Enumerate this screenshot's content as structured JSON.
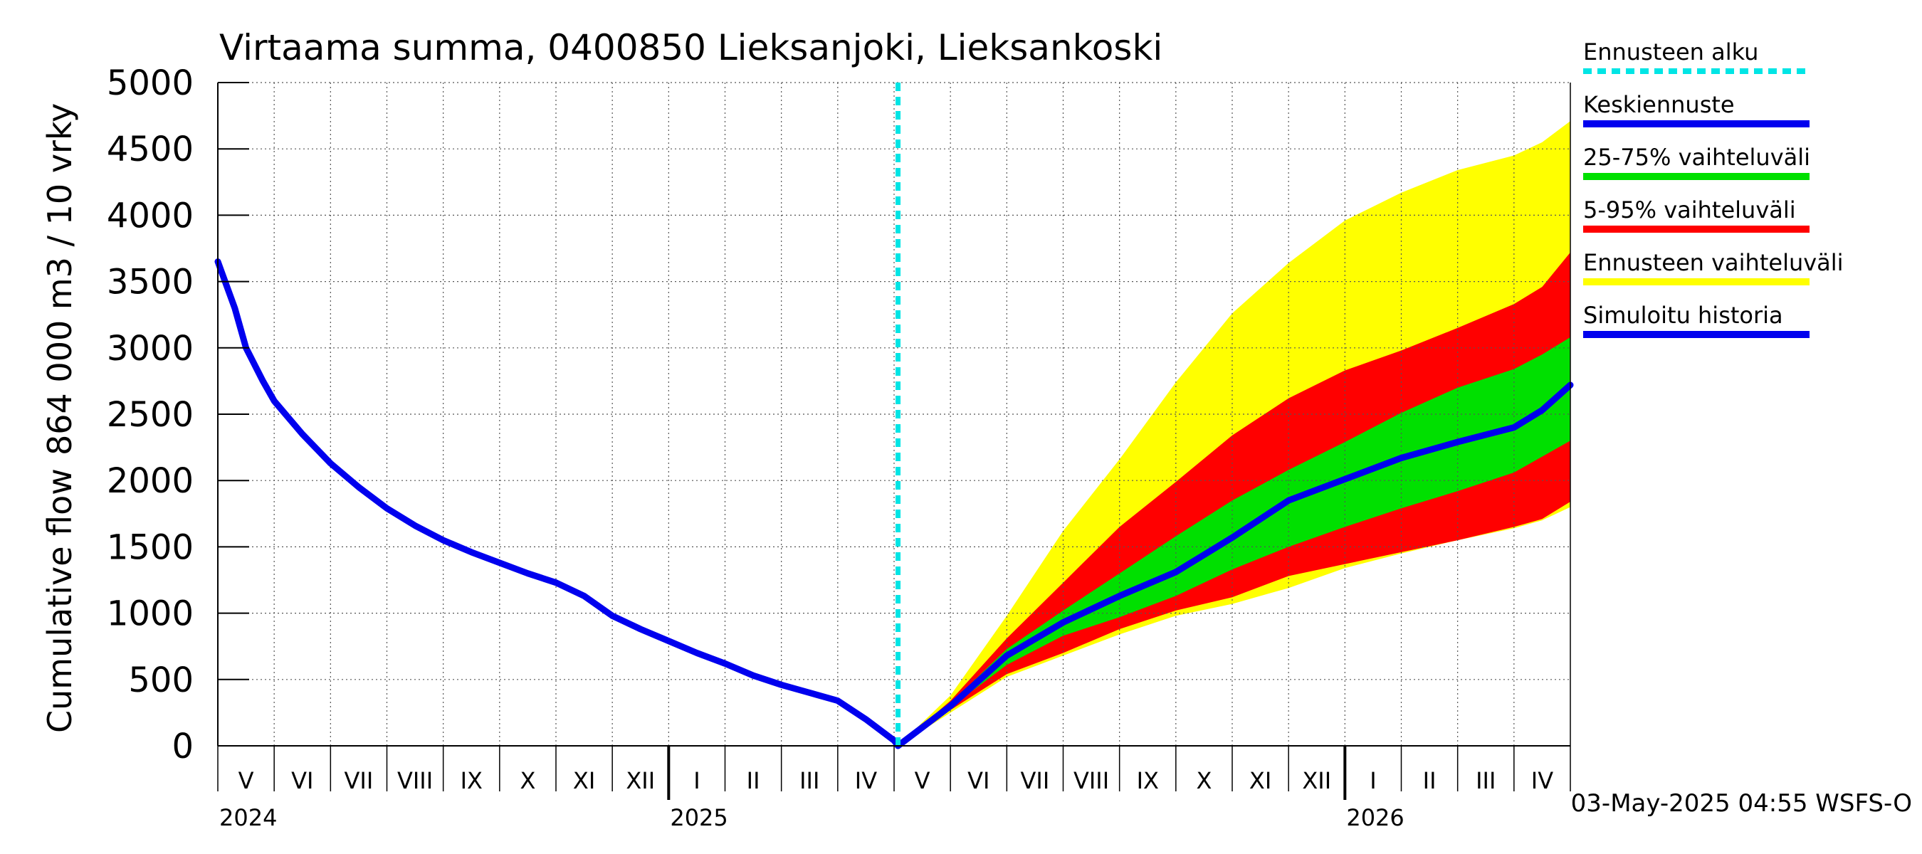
{
  "chart_data": {
    "type": "area",
    "title": "Virtaama summa, 0400850 Lieksanjoki, Lieksankoski",
    "ylabel_line1": "864 000 m3 / 10 vrky",
    "ylabel_line2": "Cumulative flow",
    "ylim": [
      0,
      5000
    ],
    "y_ticks": [
      0,
      500,
      1000,
      1500,
      2000,
      2500,
      3000,
      3500,
      4000,
      4500,
      5000
    ],
    "x_unit": "months since 2024-05-01",
    "xlim": [
      0,
      24
    ],
    "month_labels": [
      "V",
      "VI",
      "VII",
      "VIII",
      "IX",
      "X",
      "XI",
      "XII",
      "I",
      "II",
      "III",
      "IV",
      "V",
      "VI",
      "VII",
      "VIII",
      "IX",
      "X",
      "XI",
      "XII",
      "I",
      "II",
      "III",
      "IV"
    ],
    "year_labels": [
      {
        "label": "2024",
        "x": 0
      },
      {
        "label": "2025",
        "x": 8
      },
      {
        "label": "2026",
        "x": 20
      }
    ],
    "forecast_start": 12.07,
    "timestamp": "03-May-2025 04:55 WSFS-O",
    "legend": [
      {
        "label": "Ennusteen alku",
        "color": "#00e5e5",
        "style": "dashed"
      },
      {
        "label": "Keskiennuste",
        "color": "#0000ee",
        "style": "solid"
      },
      {
        "label": "25-75% vaihteluväli",
        "color": "#00e000",
        "style": "solid"
      },
      {
        "label": "5-95% vaihteluväli",
        "color": "#ff0000",
        "style": "solid"
      },
      {
        "label": "Ennusteen vaihteluväli",
        "color": "#ffff00",
        "style": "solid"
      },
      {
        "label": "Simuloitu historia",
        "color": "#0000ee",
        "style": "solid"
      }
    ],
    "history": {
      "x": [
        0,
        0.3,
        0.5,
        0.8,
        1,
        1.5,
        2,
        2.5,
        3,
        3.5,
        4,
        4.5,
        5,
        5.5,
        6,
        6.5,
        7,
        7.5,
        8,
        8.5,
        9,
        9.5,
        10,
        10.5,
        11,
        11.5,
        12,
        12.07
      ],
      "y": [
        3650,
        3300,
        3000,
        2750,
        2600,
        2350,
        2130,
        1950,
        1790,
        1660,
        1550,
        1460,
        1380,
        1300,
        1230,
        1130,
        980,
        880,
        790,
        700,
        620,
        530,
        460,
        400,
        340,
        200,
        40,
        0
      ]
    },
    "forecast": {
      "x": [
        12.07,
        13,
        14,
        15,
        16,
        17,
        18,
        19,
        20,
        21,
        22,
        23,
        23.5,
        24
      ],
      "median": [
        0,
        300,
        680,
        930,
        1130,
        1310,
        1570,
        1850,
        2010,
        2170,
        2290,
        2400,
        2530,
        2720
      ],
      "p25": [
        0,
        290,
        610,
        830,
        970,
        1130,
        1330,
        1500,
        1650,
        1790,
        1920,
        2060,
        2180,
        2300
      ],
      "p75": [
        0,
        320,
        730,
        1020,
        1300,
        1580,
        1850,
        2080,
        2290,
        2510,
        2700,
        2840,
        2950,
        3080
      ],
      "p5": [
        0,
        270,
        540,
        700,
        880,
        1020,
        1120,
        1280,
        1370,
        1460,
        1550,
        1650,
        1710,
        1840
      ],
      "p95": [
        0,
        340,
        810,
        1230,
        1650,
        1990,
        2340,
        2620,
        2830,
        2980,
        3150,
        3330,
        3460,
        3720
      ],
      "min": [
        0,
        250,
        520,
        680,
        840,
        980,
        1070,
        1190,
        1340,
        1450,
        1550,
        1640,
        1700,
        1800
      ],
      "max": [
        0,
        380,
        980,
        1620,
        2160,
        2740,
        3260,
        3640,
        3960,
        4170,
        4340,
        4450,
        4550,
        4710
      ]
    }
  }
}
